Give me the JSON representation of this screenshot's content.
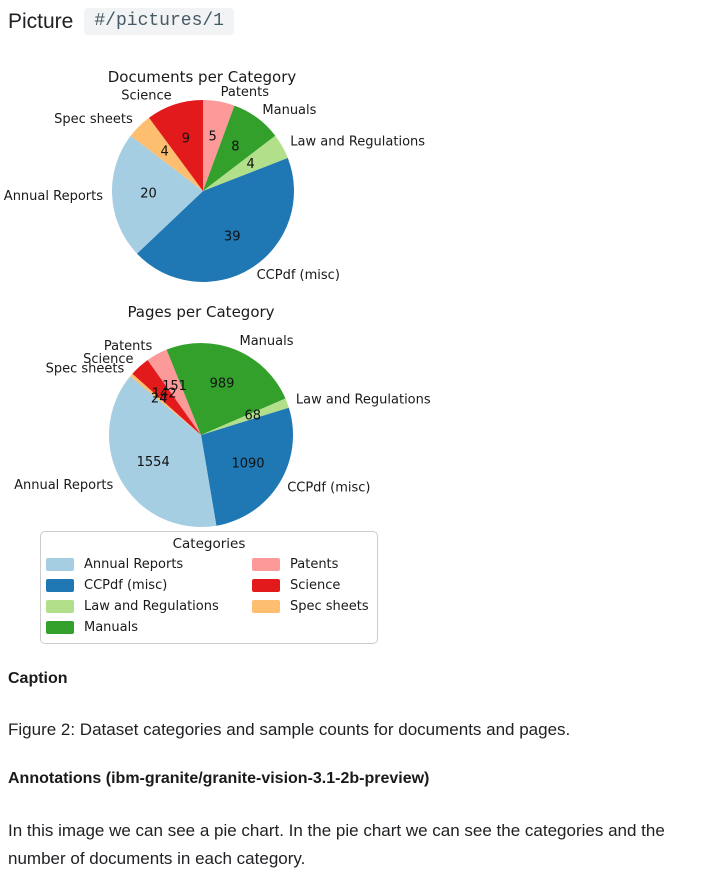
{
  "header": {
    "label": "Picture",
    "anchor": "#/pictures/1"
  },
  "colors": {
    "Annual Reports": "#a6cee3",
    "CCPdf (misc)": "#1f78b4",
    "Law and Regulations": "#b2df8a",
    "Manuals": "#33a02c",
    "Patents": "#fb9a99",
    "Science": "#e31a1c",
    "Spec sheets": "#fdbf6f"
  },
  "chart_data": [
    {
      "type": "pie",
      "title": "Documents per Category",
      "unit": "documents",
      "categories": [
        "Patents",
        "Manuals",
        "Law and Regulations",
        "CCPdf (misc)",
        "Annual Reports",
        "Spec sheets",
        "Science"
      ],
      "values": [
        5,
        8,
        4,
        39,
        20,
        4,
        9
      ],
      "direction": "clockwise",
      "start_angle": 90,
      "center": [
        203,
        131
      ],
      "radius": 91,
      "label_distance": 1.1,
      "value_distance": 0.6,
      "title_pos": [
        202,
        22
      ]
    },
    {
      "type": "pie",
      "title": "Pages per Category",
      "unit": "pages",
      "categories": [
        "Patents",
        "Manuals",
        "Law and Regulations",
        "CCPdf (misc)",
        "Annual Reports",
        "Spec sheets",
        "Science"
      ],
      "values": [
        151,
        989,
        68,
        1090,
        1554,
        24,
        142
      ],
      "direction": "clockwise",
      "start_angle": 125.5,
      "center": [
        201,
        140
      ],
      "radius": 92,
      "label_distance": 1.1,
      "value_distance": 0.6,
      "title_pos": [
        201,
        22
      ]
    }
  ],
  "legend": {
    "title": "Categories",
    "columns": [
      [
        "Annual Reports",
        "CCPdf (misc)",
        "Law and Regulations",
        "Manuals"
      ],
      [
        "Patents",
        "Science",
        "Spec sheets"
      ]
    ]
  },
  "caption": {
    "heading": "Caption",
    "text": "Figure 2: Dataset categories and sample counts for documents and pages."
  },
  "annotations": {
    "heading": "Annotations (ibm-granite/granite-vision-3.1-2b-preview)",
    "text": "In this image we can see a pie chart. In the pie chart we can see the categories and the number of documents in each category."
  }
}
